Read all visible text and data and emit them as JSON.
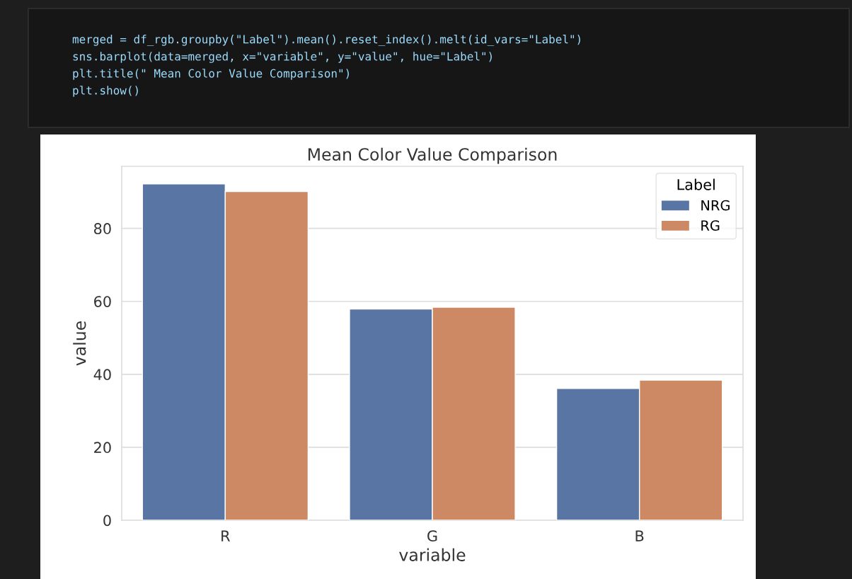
{
  "chart_data": {
    "type": "bar",
    "title": "Mean Color Value Comparison",
    "xlabel": "variable",
    "ylabel": "value",
    "legend_title": "Label",
    "categories": [
      "R",
      "G",
      "B"
    ],
    "series": [
      {
        "name": "NRG",
        "color": "#5975a4",
        "values": [
          92.2,
          57.9,
          36.1
        ]
      },
      {
        "name": "RG",
        "color": "#cc8963",
        "values": [
          90.1,
          58.4,
          38.4
        ]
      }
    ],
    "ylim": [
      0,
      97
    ],
    "yticks": [
      0,
      20,
      40,
      60,
      80
    ],
    "grid": "y",
    "legend": "top right",
    "annotations": [
      "merged = df_rgb.groupby(\"Label\").mean().reset_index().melt(id_vars=\"Label\")",
      "sns.barplot(data=merged, x=\"variable\", y=\"value\", hue=\"Label\")",
      "plt.title(\" Mean Color Value Comparison\")",
      "plt.show()"
    ]
  }
}
